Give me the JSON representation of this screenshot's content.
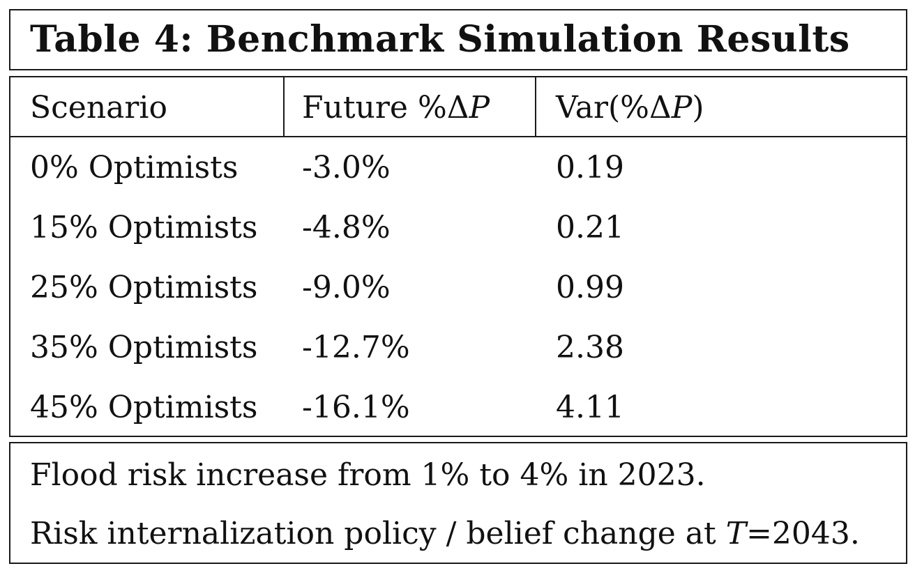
{
  "title": "Table 4: Benchmark Simulation Results",
  "headers": {
    "scenario": "Scenario",
    "future_pre": "Future %Δ",
    "future_var": "P",
    "var_pre": "Var(%Δ",
    "var_var": "P",
    "var_post": ")"
  },
  "rows": [
    {
      "scenario": "0% Optimists",
      "future": "-3.0%",
      "variance": "0.19"
    },
    {
      "scenario": "15% Optimists",
      "future": "-4.8%",
      "variance": "0.21"
    },
    {
      "scenario": "25% Optimists",
      "future": "-9.0%",
      "variance": "0.99"
    },
    {
      "scenario": "35% Optimists",
      "future": "-12.7%",
      "variance": "2.38"
    },
    {
      "scenario": "45% Optimists",
      "future": "-16.1%",
      "variance": "4.11"
    }
  ],
  "notes": {
    "line1": "Flood risk increase from 1% to 4% in 2023.",
    "line2_pre": "Risk internalization policy / belief change at ",
    "line2_var": "T",
    "line2_post": "=2043."
  }
}
